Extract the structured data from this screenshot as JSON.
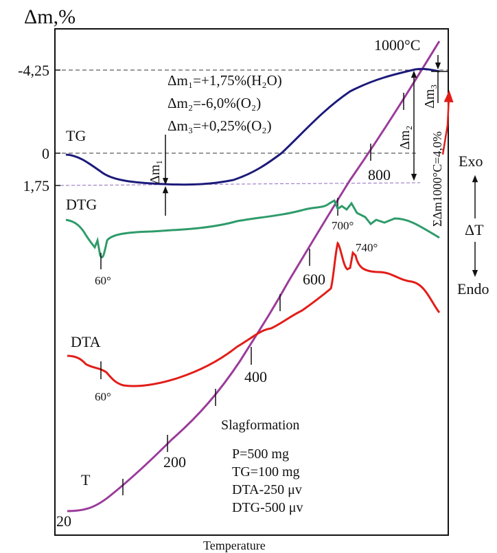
{
  "chart_data": {
    "type": "line",
    "title": "",
    "ylabel": "Δm,%",
    "xlabel": "Temperature",
    "ytick_labels": [
      "-4,25",
      "0",
      "1,75"
    ],
    "sample_info": [
      "P=500 mg",
      "TG=100 mg",
      "DTA-250 μv",
      "DTG-500 μv"
    ],
    "process_label": "Slagformation",
    "mass_changes": [
      "Δm₁=+1,75%(H₂O)",
      "Δm₂=-6,0%(O₂)",
      "Δm₃=+0,25%(O₂)"
    ],
    "total_mass_change": "ΣΔm1000°C=4,0%",
    "temperature_ticks": [
      20,
      200,
      400,
      600,
      800
    ],
    "temperature_max_label": "1000°C",
    "series": [
      {
        "name": "TG",
        "color": "#1c1a7a",
        "unit": "Δm,%",
        "temperature": [
          20,
          100,
          160,
          300,
          400,
          500,
          600,
          700,
          800,
          900,
          950,
          980,
          1000
        ],
        "delta_m": [
          0,
          1.05,
          1.6,
          1.75,
          1.72,
          1.4,
          0.7,
          -0.3,
          -1.4,
          -2.9,
          -3.9,
          -4.25,
          -4.0
        ]
      },
      {
        "name": "DTG",
        "color": "#2e9b6a",
        "peak_labels": [
          "60°",
          "700°"
        ]
      },
      {
        "name": "DTA",
        "color": "#e21d18",
        "peak_labels": [
          "60°",
          "700°",
          "740°"
        ]
      },
      {
        "name": "T",
        "color": "#9a3b9a"
      }
    ],
    "dta_legend": {
      "exo": "Exo",
      "endo": "Endo",
      "axis": "ΔT"
    },
    "markers": {
      "dm1": "Δm₁",
      "dm2": "Δm₂",
      "dm3": "Δm₃"
    },
    "grid": false,
    "legend_position": "inline"
  }
}
